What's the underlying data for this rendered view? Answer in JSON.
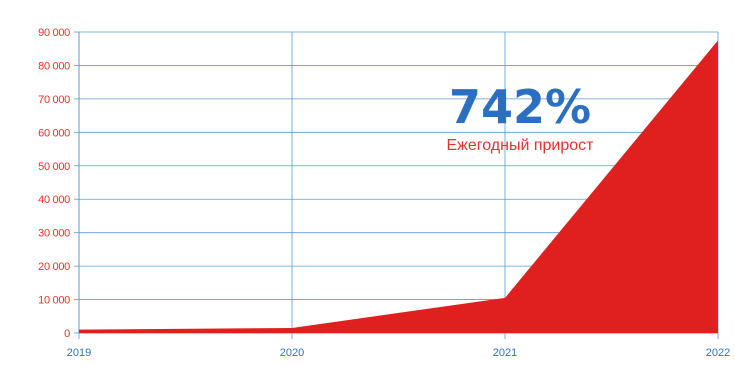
{
  "chart_data": {
    "type": "area",
    "x": [
      "2019",
      "2020",
      "2021",
      "2022"
    ],
    "values": [
      1000,
      1500,
      10500,
      87500
    ],
    "ylim": [
      0,
      90000
    ],
    "yticks": [
      "0",
      "10 000",
      "20 000",
      "30 000",
      "40 000",
      "50 000",
      "60 000",
      "70 000",
      "80 000",
      "90 000"
    ],
    "grid": true,
    "legend": "none",
    "annotation": {
      "value": "742%",
      "label": "Ежегодный прирост"
    },
    "colors": {
      "area": "#e01f1f",
      "grid": "#5a9ad8",
      "ytick": "#e8312b",
      "xtick": "#2c73c2",
      "annotation_value": "#2c6fc0",
      "annotation_label": "#e8312b"
    }
  }
}
